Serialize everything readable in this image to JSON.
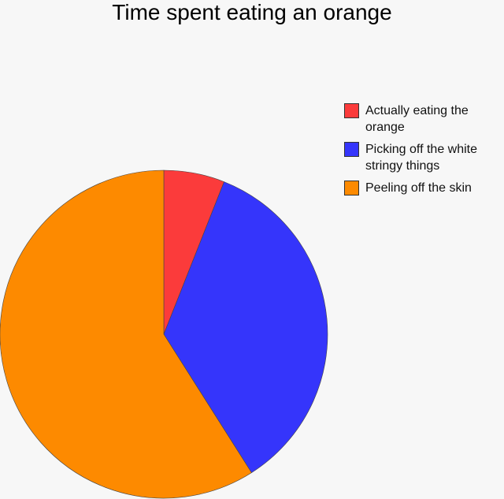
{
  "chart_data": {
    "type": "pie",
    "title": "Time spent eating an orange",
    "slices": [
      {
        "label": "Actually eating the orange",
        "value": 6,
        "color": "#fb3b3b"
      },
      {
        "label": "Picking off the white stringy things",
        "value": 35,
        "color": "#3535fb"
      },
      {
        "label": "Peeling off the skin",
        "value": 59,
        "color": "#fd8a00"
      }
    ],
    "start_angle_deg": 0,
    "direction": "clockwise",
    "legend_position": "right",
    "grid": false
  }
}
